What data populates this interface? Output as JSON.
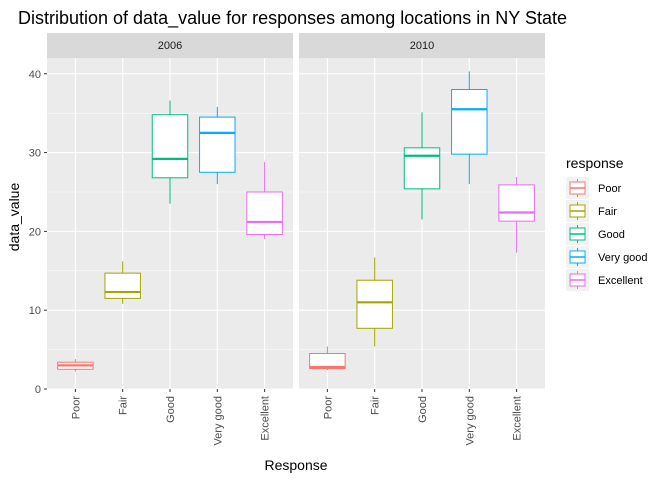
{
  "chart_data": {
    "type": "boxplot",
    "title": "Distribution of data_value for responses among locations in NY State",
    "xlabel": "Response",
    "ylabel": "data_value",
    "ylim": [
      0,
      42
    ],
    "yticks": [
      0,
      10,
      20,
      30,
      40
    ],
    "grid": true,
    "categories": [
      "Poor",
      "Fair",
      "Good",
      "Very good",
      "Excellent"
    ],
    "colors": [
      "#F8766D",
      "#A3A500",
      "#00BF7D",
      "#00B0F6",
      "#E76BF3"
    ],
    "legend": {
      "title": "response",
      "position": "right",
      "entries": [
        "Poor",
        "Fair",
        "Good",
        "Very good",
        "Excellent"
      ]
    },
    "panels": [
      {
        "label": "2006",
        "boxes": [
          {
            "category": "Poor",
            "min": 2.2,
            "q1": 2.5,
            "median": 3.0,
            "q3": 3.4,
            "max": 3.8
          },
          {
            "category": "Fair",
            "min": 10.8,
            "q1": 11.5,
            "median": 12.3,
            "q3": 14.7,
            "max": 16.2
          },
          {
            "category": "Good",
            "min": 23.5,
            "q1": 26.8,
            "median": 29.2,
            "q3": 34.8,
            "max": 36.6
          },
          {
            "category": "Very good",
            "min": 26.0,
            "q1": 27.5,
            "median": 32.5,
            "q3": 34.5,
            "max": 35.8
          },
          {
            "category": "Excellent",
            "min": 19.0,
            "q1": 19.6,
            "median": 21.2,
            "q3": 25.0,
            "max": 28.8
          }
        ]
      },
      {
        "label": "2010",
        "boxes": [
          {
            "category": "Poor",
            "min": 2.4,
            "q1": 2.6,
            "median": 2.8,
            "q3": 4.5,
            "max": 5.4
          },
          {
            "category": "Fair",
            "min": 5.4,
            "q1": 7.7,
            "median": 11.0,
            "q3": 13.8,
            "max": 16.7
          },
          {
            "category": "Good",
            "min": 21.5,
            "q1": 25.4,
            "median": 29.6,
            "q3": 30.6,
            "max": 35.1
          },
          {
            "category": "Very good",
            "min": 26.0,
            "q1": 29.8,
            "median": 35.5,
            "q3": 38.0,
            "max": 40.3
          },
          {
            "category": "Excellent",
            "min": 17.3,
            "q1": 21.3,
            "median": 22.4,
            "q3": 25.9,
            "max": 26.9
          }
        ]
      }
    ]
  }
}
